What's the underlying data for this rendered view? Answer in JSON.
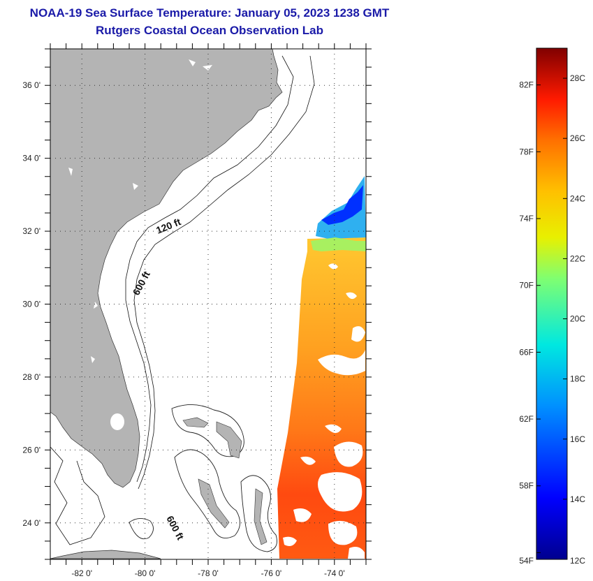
{
  "title_line1": "NOAA-19 Sea Surface Temperature:  January 05, 2023 1238 GMT",
  "title_line2": "Rutgers Coastal Ocean Observation Lab",
  "map": {
    "lon_range": [
      -83,
      -73
    ],
    "lat_range": [
      23,
      37
    ],
    "lat_labels": [
      "36 0'",
      "34 0'",
      "32 0'",
      "30 0'",
      "28 0'",
      "26 0'",
      "24 0'"
    ],
    "lat_values": [
      36,
      34,
      32,
      30,
      28,
      26,
      24
    ],
    "lon_labels": [
      "-82 0'",
      "-80 0'",
      "-78 0'",
      "-76 0'",
      "-74 0'"
    ],
    "lon_values": [
      -82,
      -80,
      -78,
      -76,
      -74
    ],
    "depth_labels": [
      "120 ft",
      "600 ft",
      "600 ft"
    ],
    "land_color": "#b4b4b4",
    "grid": "dotted"
  },
  "colorbar": {
    "f_labels": [
      "82F",
      "78F",
      "74F",
      "70F",
      "66F",
      "62F",
      "58F",
      "54F"
    ],
    "c_labels": [
      "28C",
      "26C",
      "24C",
      "22C",
      "20C",
      "18C",
      "16C",
      "14C",
      "12C"
    ],
    "range_c": [
      12,
      29
    ]
  }
}
